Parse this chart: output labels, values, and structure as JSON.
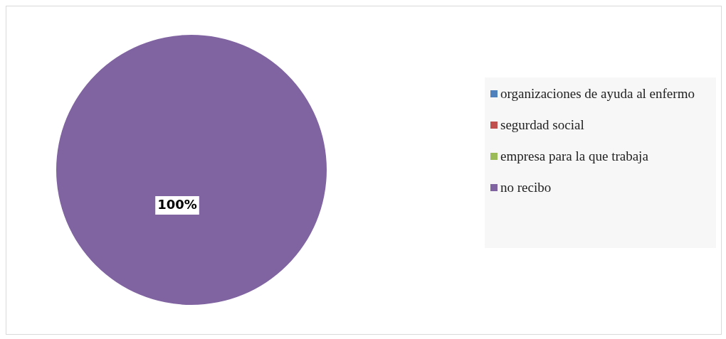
{
  "chart_data": {
    "type": "pie",
    "categories": [
      "organizaciones de ayuda al enfermo",
      "segurdad social",
      "empresa para la que trabaja",
      "no recibo"
    ],
    "values": [
      0,
      0,
      0,
      100
    ],
    "colors": [
      "#4f81bd",
      "#c0504d",
      "#9bbb59",
      "#8064a2"
    ],
    "value_labels": [
      null,
      null,
      null,
      "100%"
    ],
    "legend": "right"
  }
}
